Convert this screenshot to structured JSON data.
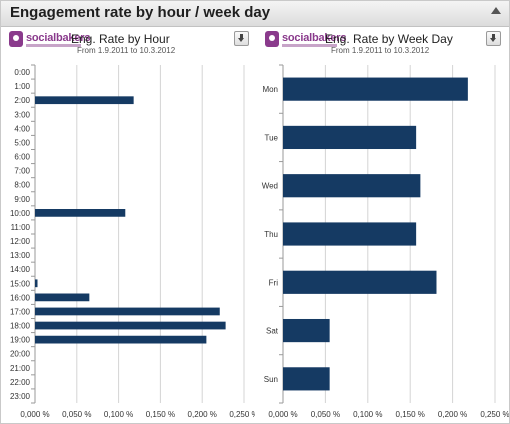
{
  "header": {
    "title": "Engagement rate by hour / week day"
  },
  "branding": {
    "logo_text": "socialbakers"
  },
  "colors": {
    "bar": "#153a63",
    "grid": "#d4d4d4",
    "logo": "#8a3a8c"
  },
  "chart_data": [
    {
      "type": "bar",
      "orientation": "horizontal",
      "title": "Eng. Rate by Hour",
      "subtitle": "From 1.9.2011 to 10.3.2012",
      "categories": [
        "0:00",
        "1:00",
        "2:00",
        "3:00",
        "4:00",
        "5:00",
        "6:00",
        "7:00",
        "8:00",
        "9:00",
        "10:00",
        "11:00",
        "12:00",
        "13:00",
        "14:00",
        "15:00",
        "16:00",
        "17:00",
        "18:00",
        "19:00",
        "20:00",
        "21:00",
        "22:00",
        "23:00"
      ],
      "values": [
        0,
        0,
        0.118,
        0,
        0,
        0,
        0,
        0,
        0,
        0,
        0.108,
        0,
        0,
        0,
        0,
        0.003,
        0.065,
        0.221,
        0.228,
        0.205,
        0,
        0,
        0,
        0
      ],
      "xlim": [
        0,
        0.25
      ],
      "ticks": [
        "0,000 %",
        "0,050 %",
        "0,100 %",
        "0,150 %",
        "0,200 %",
        "0,250 %"
      ],
      "grid": true
    },
    {
      "type": "bar",
      "orientation": "horizontal",
      "title": "Eng. Rate by Week Day",
      "subtitle": "From 1.9.2011 to 10.3.2012",
      "categories": [
        "Mon",
        "Tue",
        "Wed",
        "Thu",
        "Fri",
        "Sat",
        "Sun"
      ],
      "values": [
        0.218,
        0.157,
        0.162,
        0.157,
        0.181,
        0.055,
        0.055
      ],
      "xlim": [
        0,
        0.25
      ],
      "ticks": [
        "0,000 %",
        "0,050 %",
        "0,100 %",
        "0,150 %",
        "0,200 %",
        "0,250 %"
      ],
      "grid": true
    }
  ]
}
